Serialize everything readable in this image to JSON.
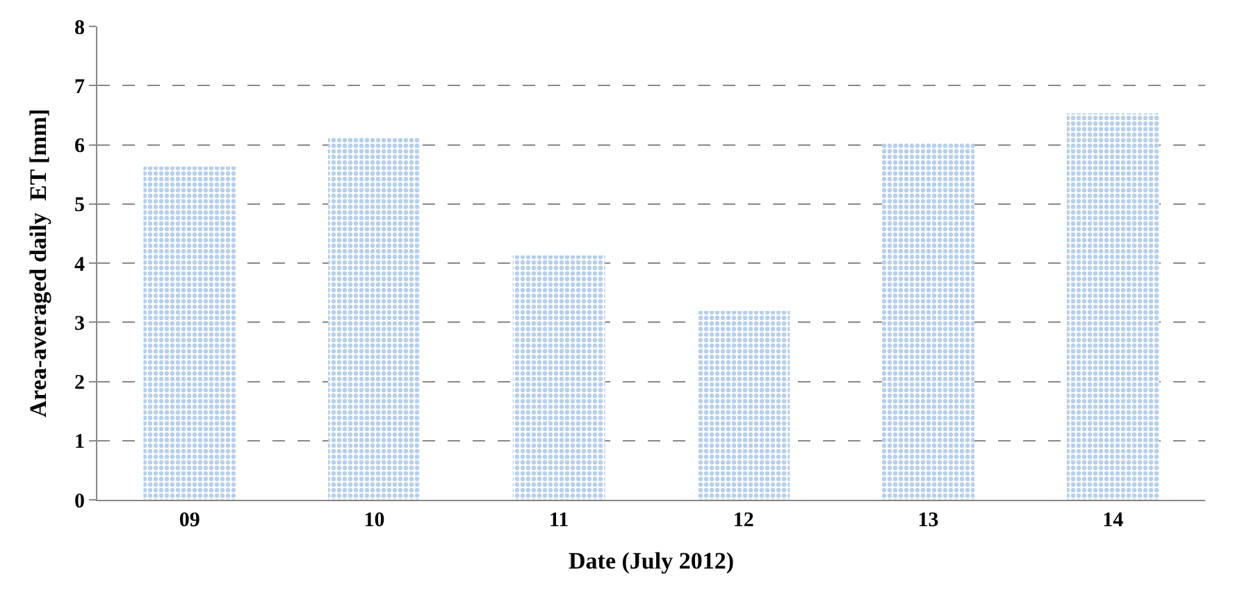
{
  "chart_data": {
    "type": "bar",
    "xlabel": "Date (July 2012)",
    "ylabel": "Area-averaged daily  ET [mm]",
    "categories": [
      "09",
      "10",
      "11",
      "12",
      "13",
      "14"
    ],
    "values": [
      5.63,
      6.13,
      4.13,
      3.19,
      6.03,
      6.53
    ],
    "color": "#6f9fd8",
    "ylim": [
      0,
      8
    ],
    "yticks": [
      0,
      1,
      2,
      3,
      4,
      5,
      6,
      7,
      8
    ],
    "grid": "y"
  }
}
